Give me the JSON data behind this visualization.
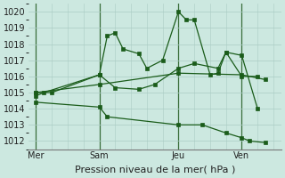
{
  "xlabel": "Pression niveau de la mer( hPa )",
  "bg_color": "#cce8e0",
  "grid_color": "#aaccC4",
  "line_color": "#1a5c1a",
  "ylim": [
    1011.5,
    1020.5
  ],
  "yticks": [
    1012,
    1013,
    1014,
    1015,
    1016,
    1017,
    1018,
    1019,
    1020
  ],
  "xtick_labels": [
    "Mer",
    "Sam",
    "Jeu",
    "Ven"
  ],
  "xtick_positions": [
    0,
    4,
    9,
    13
  ],
  "vlines": [
    0,
    4,
    9,
    13
  ],
  "xlim": [
    -0.5,
    15.5
  ],
  "series1_x": [
    0,
    0.5,
    4.0,
    4.5,
    5.0,
    5.5,
    6.5,
    7.0,
    8.0,
    9.0,
    9.5,
    10.0,
    11.0,
    11.5,
    12.0,
    13.0,
    14.0
  ],
  "series1_y": [
    1014.8,
    1015.0,
    1016.1,
    1018.5,
    1018.7,
    1017.7,
    1017.4,
    1016.5,
    1017.0,
    1020.0,
    1019.5,
    1019.5,
    1016.1,
    1016.2,
    1017.5,
    1017.3,
    1014.0
  ],
  "series2_x": [
    0,
    1.0,
    4.0,
    5.0,
    6.5,
    7.5,
    9.0,
    10.0,
    11.5,
    12.0,
    13.0,
    14.0
  ],
  "series2_y": [
    1015.0,
    1015.0,
    1016.1,
    1015.3,
    1015.2,
    1015.5,
    1016.5,
    1016.8,
    1016.5,
    1017.5,
    1016.0,
    1016.0
  ],
  "series3_x": [
    0,
    4.0,
    9.0,
    13.0,
    14.5
  ],
  "series3_y": [
    1015.0,
    1015.5,
    1016.2,
    1016.1,
    1015.8
  ],
  "series4_x": [
    0,
    4.0,
    4.5,
    9.0,
    10.5,
    12.0,
    13.0,
    13.5,
    14.5
  ],
  "series4_y": [
    1014.4,
    1014.1,
    1013.5,
    1013.0,
    1013.0,
    1012.5,
    1012.2,
    1012.0,
    1011.9
  ]
}
